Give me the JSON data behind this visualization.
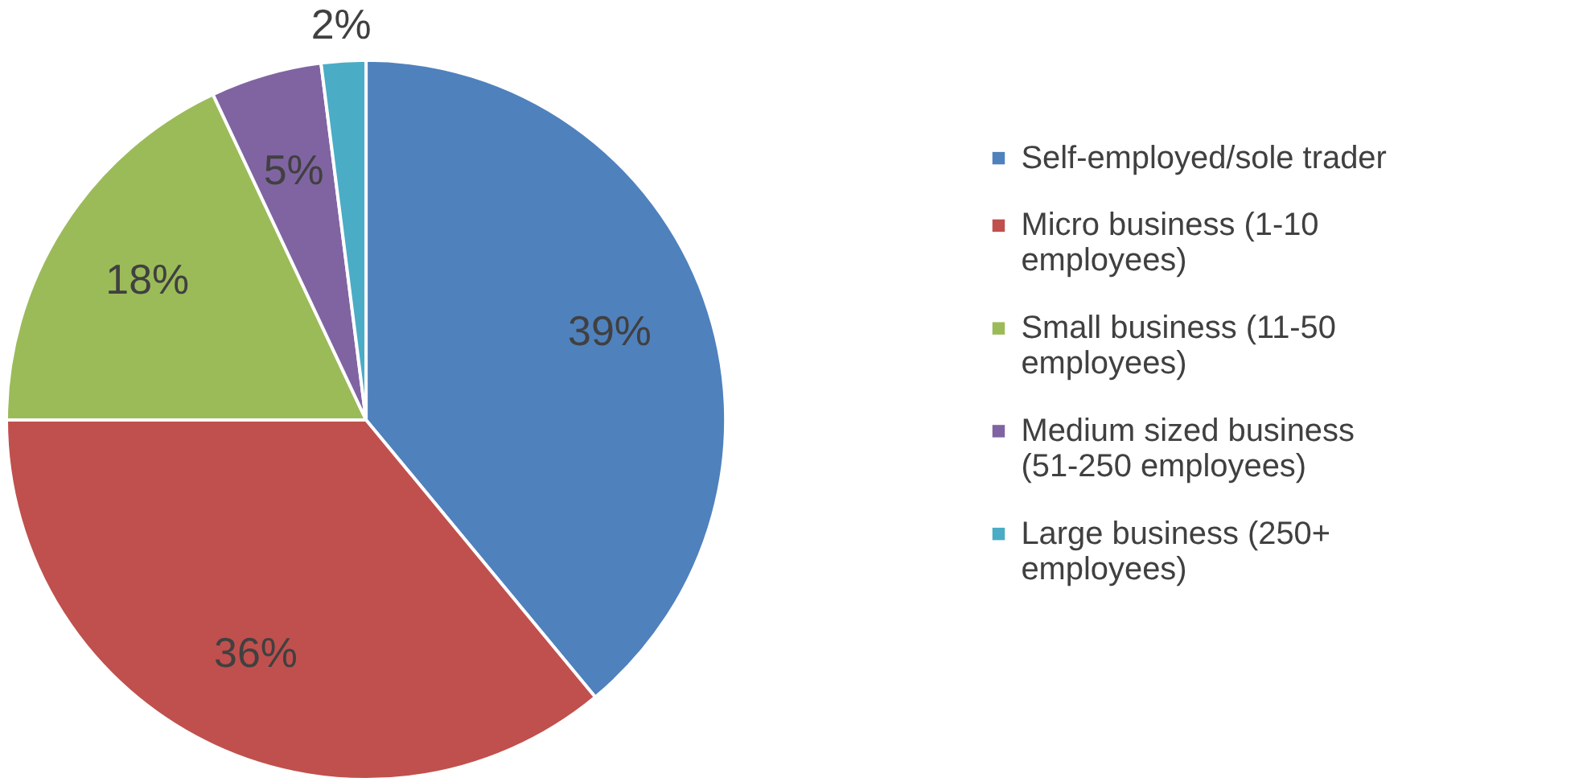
{
  "chart_data": {
    "type": "pie",
    "categories": [
      "Self-employed/sole trader",
      "Micro business (1-10 employees)",
      "Small business (11-50 employees)",
      "Medium sized business (51-250 employees)",
      "Large business (250+ employees)"
    ],
    "values": [
      39,
      36,
      18,
      5,
      2
    ],
    "value_labels": [
      "39%",
      "36%",
      "18%",
      "5%",
      "2%"
    ],
    "colors": [
      "#4f81bd",
      "#c0504d",
      "#9bbb59",
      "#8064a2",
      "#4bacc6"
    ],
    "legend": "right"
  }
}
